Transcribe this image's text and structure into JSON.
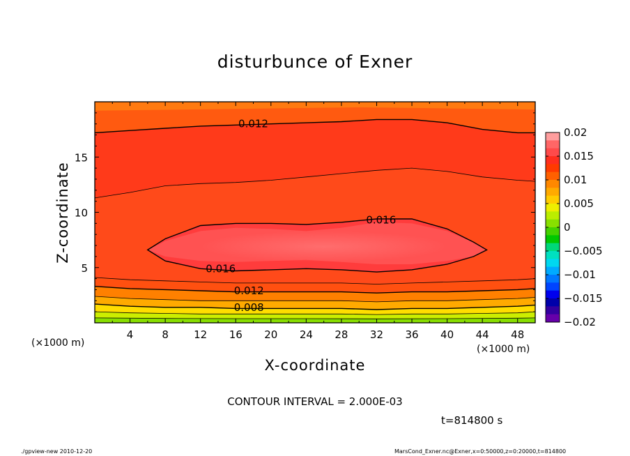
{
  "chart_data": {
    "type": "heatmap",
    "title": "disturbunce of Exner",
    "xlabel": "X-coordinate",
    "ylabel": "Z-coordinate",
    "x_unit_label": "(×1000 m)",
    "xlim": [
      0,
      50
    ],
    "ylim": [
      0,
      20
    ],
    "x_ticks": [
      4,
      8,
      12,
      16,
      20,
      24,
      28,
      32,
      36,
      40,
      44,
      48
    ],
    "y_ticks": [
      5,
      10,
      15
    ],
    "contour_interval_text": "CONTOUR INTERVAL = 2.000E-03",
    "contour_labels": [
      {
        "text": "0.012",
        "x": 18,
        "z": 18.0
      },
      {
        "text": "0.016",
        "x": 32.5,
        "z": 9.3
      },
      {
        "text": "0.016",
        "x": 14.3,
        "z": 4.9
      },
      {
        "text": "0.012",
        "x": 17.5,
        "z": 2.9
      },
      {
        "text": "0.008",
        "x": 17.5,
        "z": 1.4
      }
    ],
    "contours": [
      {
        "level": 0.018,
        "points": [
          [
            6,
            6.6
          ],
          [
            8,
            7.4
          ],
          [
            12,
            8.3
          ],
          [
            16,
            8.6
          ],
          [
            20,
            8.5
          ],
          [
            24,
            8.3
          ],
          [
            28,
            8.6
          ],
          [
            32,
            9.1
          ],
          [
            36,
            9.0
          ],
          [
            40,
            8.3
          ],
          [
            43,
            7.3
          ],
          [
            44.5,
            6.6
          ],
          [
            43,
            6.0
          ],
          [
            40,
            5.6
          ],
          [
            36,
            5.3
          ],
          [
            32,
            5.3
          ],
          [
            28,
            5.5
          ],
          [
            24,
            5.7
          ],
          [
            20,
            5.6
          ],
          [
            16,
            5.5
          ],
          [
            12,
            5.6
          ],
          [
            8,
            6.0
          ]
        ]
      },
      {
        "level": 0.016,
        "points": [
          [
            6,
            6.6
          ],
          [
            8,
            7.6
          ],
          [
            12,
            8.8
          ],
          [
            16,
            9.0
          ],
          [
            20,
            9.0
          ],
          [
            24,
            8.9
          ],
          [
            28,
            9.1
          ],
          [
            32,
            9.4
          ],
          [
            36,
            9.4
          ],
          [
            40,
            8.5
          ],
          [
            43,
            7.3
          ],
          [
            44.5,
            6.6
          ],
          [
            43,
            6.0
          ],
          [
            40,
            5.3
          ],
          [
            36,
            4.8
          ],
          [
            32,
            4.6
          ],
          [
            28,
            4.8
          ],
          [
            24,
            4.9
          ],
          [
            20,
            4.8
          ],
          [
            16,
            4.7
          ],
          [
            12,
            4.9
          ],
          [
            8,
            5.6
          ]
        ]
      },
      {
        "level": 0.014,
        "points": [
          [
            0,
            11.3
          ],
          [
            4,
            11.8
          ],
          [
            8,
            12.4
          ],
          [
            12,
            12.6
          ],
          [
            16,
            12.7
          ],
          [
            20,
            12.9
          ],
          [
            24,
            13.2
          ],
          [
            28,
            13.5
          ],
          [
            32,
            13.8
          ],
          [
            36,
            14.0
          ],
          [
            40,
            13.7
          ],
          [
            44,
            13.2
          ],
          [
            48,
            12.9
          ],
          [
            50,
            12.8
          ]
        ]
      },
      {
        "level": 0.014,
        "points": [
          [
            0,
            4.1
          ],
          [
            4,
            3.9
          ],
          [
            8,
            3.8
          ],
          [
            12,
            3.7
          ],
          [
            16,
            3.6
          ],
          [
            20,
            3.6
          ],
          [
            24,
            3.6
          ],
          [
            28,
            3.6
          ],
          [
            32,
            3.5
          ],
          [
            36,
            3.6
          ],
          [
            40,
            3.7
          ],
          [
            44,
            3.8
          ],
          [
            48,
            3.9
          ],
          [
            50,
            4.0
          ]
        ]
      },
      {
        "level": 0.012,
        "points": [
          [
            0,
            17.2
          ],
          [
            4,
            17.4
          ],
          [
            8,
            17.6
          ],
          [
            12,
            17.8
          ],
          [
            16,
            17.9
          ],
          [
            20,
            18.0
          ],
          [
            24,
            18.1
          ],
          [
            28,
            18.2
          ],
          [
            32,
            18.4
          ],
          [
            36,
            18.4
          ],
          [
            40,
            18.1
          ],
          [
            44,
            17.5
          ],
          [
            48,
            17.2
          ],
          [
            50,
            17.2
          ]
        ]
      },
      {
        "level": 0.012,
        "points": [
          [
            0,
            3.3
          ],
          [
            4,
            3.1
          ],
          [
            8,
            3.0
          ],
          [
            12,
            2.9
          ],
          [
            16,
            2.8
          ],
          [
            20,
            2.8
          ],
          [
            24,
            2.8
          ],
          [
            28,
            2.8
          ],
          [
            32,
            2.7
          ],
          [
            36,
            2.8
          ],
          [
            40,
            2.8
          ],
          [
            44,
            2.9
          ],
          [
            48,
            3.0
          ],
          [
            50,
            3.1
          ]
        ]
      },
      {
        "level": 0.01,
        "points": [
          [
            0,
            2.4
          ],
          [
            4,
            2.2
          ],
          [
            8,
            2.1
          ],
          [
            12,
            2.0
          ],
          [
            16,
            2.0
          ],
          [
            20,
            2.0
          ],
          [
            24,
            2.0
          ],
          [
            28,
            2.0
          ],
          [
            32,
            1.9
          ],
          [
            36,
            2.0
          ],
          [
            40,
            2.0
          ],
          [
            44,
            2.1
          ],
          [
            48,
            2.2
          ],
          [
            50,
            2.3
          ]
        ]
      },
      {
        "level": 0.008,
        "points": [
          [
            0,
            1.7
          ],
          [
            4,
            1.5
          ],
          [
            8,
            1.4
          ],
          [
            12,
            1.4
          ],
          [
            16,
            1.3
          ],
          [
            20,
            1.3
          ],
          [
            24,
            1.3
          ],
          [
            28,
            1.3
          ],
          [
            32,
            1.2
          ],
          [
            36,
            1.3
          ],
          [
            40,
            1.3
          ],
          [
            44,
            1.4
          ],
          [
            48,
            1.5
          ],
          [
            50,
            1.6
          ]
        ]
      },
      {
        "level": 0.006,
        "points": [
          [
            0,
            1.0
          ],
          [
            4,
            0.9
          ],
          [
            8,
            0.85
          ],
          [
            12,
            0.8
          ],
          [
            16,
            0.8
          ],
          [
            20,
            0.8
          ],
          [
            24,
            0.8
          ],
          [
            28,
            0.8
          ],
          [
            32,
            0.75
          ],
          [
            36,
            0.8
          ],
          [
            40,
            0.8
          ],
          [
            44,
            0.85
          ],
          [
            48,
            0.9
          ],
          [
            50,
            1.0
          ]
        ]
      },
      {
        "level": 0.004,
        "points": [
          [
            0,
            0.45
          ],
          [
            8,
            0.4
          ],
          [
            16,
            0.38
          ],
          [
            24,
            0.38
          ],
          [
            32,
            0.36
          ],
          [
            40,
            0.38
          ],
          [
            48,
            0.42
          ],
          [
            50,
            0.45
          ]
        ]
      }
    ],
    "colorbar": {
      "tick_labels": [
        "0.02",
        "0.015",
        "0.01",
        "0.005",
        "0",
        "−0.005",
        "−0.01",
        "−0.015",
        "−0.02"
      ],
      "colors_top_to_bottom": [
        "#ff9e9e",
        "#ff6666",
        "#ff4a4a",
        "#ff2e1e",
        "#ff3a00",
        "#ff6000",
        "#ff8800",
        "#ffaa00",
        "#ffcc00",
        "#eeee00",
        "#bbee00",
        "#88e000",
        "#44d200",
        "#00c800",
        "#00d87a",
        "#00e0c0",
        "#00d8f0",
        "#00aaff",
        "#0078ff",
        "#0044ff",
        "#0000ee",
        "#0000aa",
        "#3300a0",
        "#6600aa"
      ]
    }
  },
  "annotations": {
    "contour_interval": "CONTOUR INTERVAL = 2.000E-03",
    "time": "t=814800 s",
    "footer_left": "./gpview-new   2010-12-20",
    "footer_right": "MarsCond_Exner.nc@Exner,x=0:50000,z=0:20000,t=814800"
  }
}
